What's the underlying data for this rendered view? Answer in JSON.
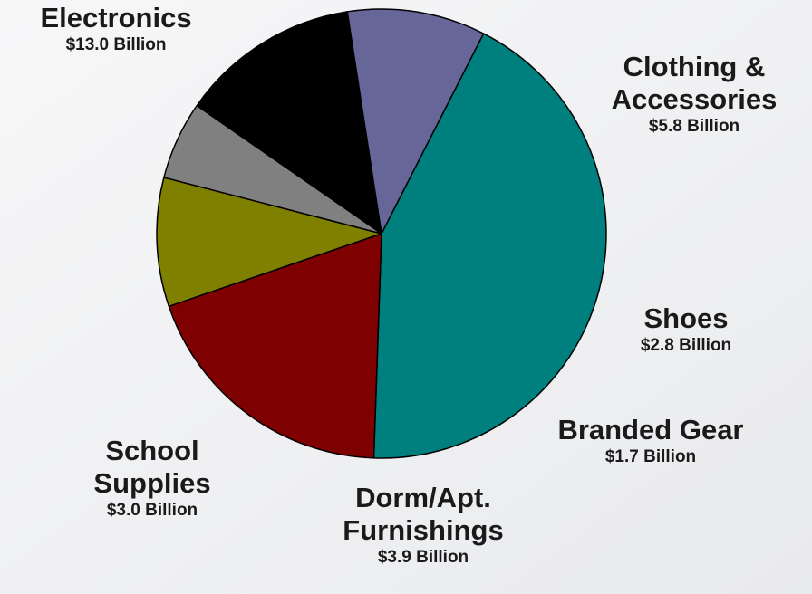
{
  "chart_data": {
    "type": "pie",
    "title": "",
    "slices": [
      {
        "name": "Electronics",
        "value": 13.0,
        "value_label": "$13.0 Billion",
        "color": "#007f7f"
      },
      {
        "name": "Clothing & Accessories",
        "name_lines": [
          "Clothing &",
          "Accessories"
        ],
        "value": 5.8,
        "value_label": "$5.8 Billion",
        "color": "#7f0000"
      },
      {
        "name": "Shoes",
        "value": 2.8,
        "value_label": "$2.8 Billion",
        "color": "#7f7f00"
      },
      {
        "name": "Branded Gear",
        "value": 1.7,
        "value_label": "$1.7 Billion",
        "color": "#808080"
      },
      {
        "name": "Dorm/Apt. Furnishings",
        "name_lines": [
          "Dorm/Apt.",
          "Furnishings"
        ],
        "value": 3.9,
        "value_label": "$3.9 Billion",
        "color": "#000000"
      },
      {
        "name": "School Supplies",
        "name_lines": [
          "School",
          "Supplies"
        ],
        "value": 3.0,
        "value_label": "$3.0 Billion",
        "color": "#666699"
      }
    ],
    "legend": "none"
  }
}
